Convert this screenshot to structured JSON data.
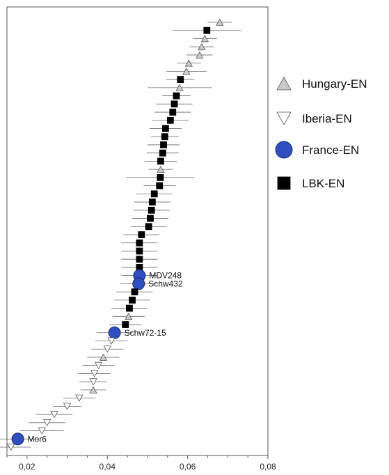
{
  "chart_data": {
    "type": "scatter",
    "title": "",
    "xlabel": "",
    "ylabel": "",
    "xlim": [
      0.015,
      0.08
    ],
    "x_ticks": [
      "0,02",
      "0,04",
      "0,06",
      "0,08"
    ],
    "x_tick_values": [
      0.02,
      0.04,
      0.06,
      0.08
    ],
    "y_axis": "rank (unlabeled)",
    "legend_position": "right",
    "series": [
      {
        "name": "Hungary-EN",
        "marker": "triangle-up",
        "color": "#c8cbc8"
      },
      {
        "name": "Iberia-EN",
        "marker": "triangle-down",
        "color": "#ffffff"
      },
      {
        "name": "France-EN",
        "marker": "circle",
        "color": "#2f4fc0"
      },
      {
        "name": "LBK-EN",
        "marker": "square",
        "color": "#000000"
      }
    ],
    "points": [
      {
        "s": 0,
        "x": 0.068,
        "err": 0.003
      },
      {
        "s": 3,
        "x": 0.0648,
        "err": 0.0085
      },
      {
        "s": 0,
        "x": 0.0643,
        "err": 0.003
      },
      {
        "s": 0,
        "x": 0.0635,
        "err": 0.003
      },
      {
        "s": 0,
        "x": 0.063,
        "err": 0.0032
      },
      {
        "s": 0,
        "x": 0.0603,
        "err": 0.003
      },
      {
        "s": 0,
        "x": 0.0597,
        "err": 0.005
      },
      {
        "s": 3,
        "x": 0.0582,
        "err": 0.0035
      },
      {
        "s": 0,
        "x": 0.058,
        "err": 0.008
      },
      {
        "s": 3,
        "x": 0.0572,
        "err": 0.0035
      },
      {
        "s": 3,
        "x": 0.0567,
        "err": 0.0045
      },
      {
        "s": 3,
        "x": 0.0563,
        "err": 0.0045
      },
      {
        "s": 3,
        "x": 0.0557,
        "err": 0.0045
      },
      {
        "s": 3,
        "x": 0.0545,
        "err": 0.004
      },
      {
        "s": 3,
        "x": 0.0543,
        "err": 0.0035
      },
      {
        "s": 3,
        "x": 0.054,
        "err": 0.004
      },
      {
        "s": 3,
        "x": 0.0538,
        "err": 0.004
      },
      {
        "s": 3,
        "x": 0.0533,
        "err": 0.004
      },
      {
        "s": 0,
        "x": 0.0533,
        "err": 0.003
      },
      {
        "s": 3,
        "x": 0.0532,
        "err": 0.0085
      },
      {
        "s": 3,
        "x": 0.053,
        "err": 0.004
      },
      {
        "s": 3,
        "x": 0.0517,
        "err": 0.0045
      },
      {
        "s": 3,
        "x": 0.0512,
        "err": 0.0045
      },
      {
        "s": 3,
        "x": 0.051,
        "err": 0.0045
      },
      {
        "s": 3,
        "x": 0.0507,
        "err": 0.0045
      },
      {
        "s": 3,
        "x": 0.0503,
        "err": 0.0045
      },
      {
        "s": 3,
        "x": 0.0485,
        "err": 0.0045
      },
      {
        "s": 3,
        "x": 0.048,
        "err": 0.0045
      },
      {
        "s": 3,
        "x": 0.048,
        "err": 0.0045
      },
      {
        "s": 3,
        "x": 0.048,
        "err": 0.0045
      },
      {
        "s": 3,
        "x": 0.048,
        "err": 0.0045
      },
      {
        "s": 2,
        "x": 0.048,
        "err": 0.0045,
        "label": "MDV248"
      },
      {
        "s": 2,
        "x": 0.0478,
        "err": 0.0045,
        "label": "Schw432"
      },
      {
        "s": 3,
        "x": 0.0468,
        "err": 0.0045
      },
      {
        "s": 3,
        "x": 0.0462,
        "err": 0.0045
      },
      {
        "s": 3,
        "x": 0.0455,
        "err": 0.0045
      },
      {
        "s": 0,
        "x": 0.0453,
        "err": 0.004
      },
      {
        "s": 3,
        "x": 0.0445,
        "err": 0.004
      },
      {
        "s": 2,
        "x": 0.0418,
        "err": 0.0045,
        "label": "Schw72-15"
      },
      {
        "s": 1,
        "x": 0.041,
        "err": 0.004
      },
      {
        "s": 1,
        "x": 0.04,
        "err": 0.004
      },
      {
        "s": 0,
        "x": 0.039,
        "err": 0.004
      },
      {
        "s": 1,
        "x": 0.0378,
        "err": 0.004
      },
      {
        "s": 1,
        "x": 0.0368,
        "err": 0.004
      },
      {
        "s": 1,
        "x": 0.0365,
        "err": 0.0035
      },
      {
        "s": 0,
        "x": 0.0365,
        "err": 0.0032
      },
      {
        "s": 1,
        "x": 0.033,
        "err": 0.004
      },
      {
        "s": 1,
        "x": 0.03,
        "err": 0.0035
      },
      {
        "s": 1,
        "x": 0.0268,
        "err": 0.0045
      },
      {
        "s": 1,
        "x": 0.025,
        "err": 0.0045
      },
      {
        "s": 1,
        "x": 0.0237,
        "err": 0.0055
      },
      {
        "s": 2,
        "x": 0.0177,
        "err": 0.005,
        "label": "Mor6"
      },
      {
        "s": 1,
        "x": 0.016,
        "err": 0.005
      }
    ]
  }
}
